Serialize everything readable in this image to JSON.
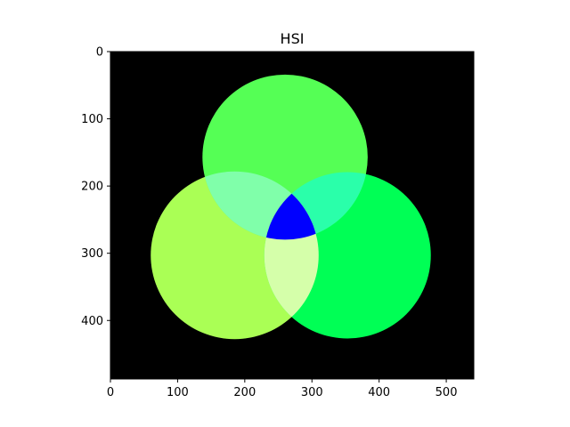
{
  "figure": {
    "title": "HSI",
    "image_width": 541,
    "image_height": 487,
    "background_color": "#000000",
    "x_ticks": [
      0,
      100,
      200,
      300,
      400,
      500
    ],
    "y_ticks": [
      0,
      100,
      200,
      300,
      400
    ],
    "circles": [
      {
        "name": "top",
        "cx": 260,
        "cy": 157,
        "r": 123,
        "color": "#55ff55"
      },
      {
        "name": "left",
        "cx": 185,
        "cy": 303,
        "r": 125,
        "color": "#aaff55"
      },
      {
        "name": "right",
        "cx": 353,
        "cy": 303,
        "r": 124,
        "color": "#00ff55"
      }
    ],
    "overlap_colors": {
      "top_left": "#80ffaa",
      "top_right": "#2affaa",
      "left_right": "#d5ffaa",
      "all": "#0000ff"
    }
  }
}
